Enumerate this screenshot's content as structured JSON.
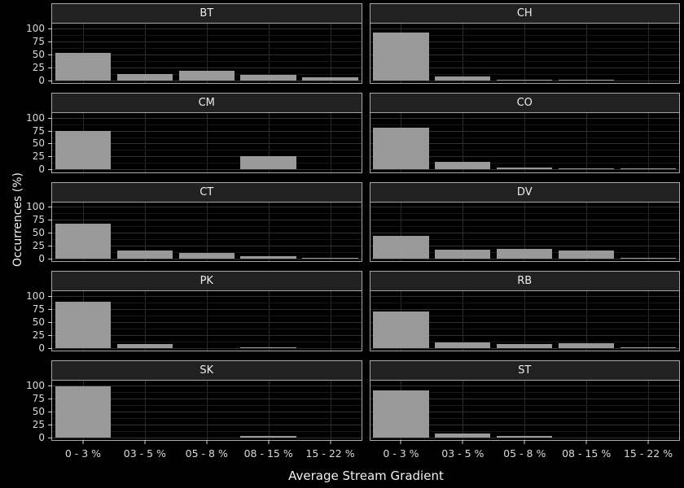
{
  "chart_data": {
    "type": "bar",
    "title": "",
    "xlabel": "Average Stream Gradient",
    "ylabel": "Occurrences (%)",
    "categories": [
      "0 - 3 %",
      "03 - 5 %",
      "05 - 8 %",
      "08 - 15 %",
      "15 - 22 %"
    ],
    "yticks": [
      100,
      75,
      50,
      25,
      0
    ],
    "ylim": [
      0,
      100
    ],
    "grid": "on",
    "legend": "none",
    "facet_layout": {
      "columns": 2,
      "rows": 5
    },
    "facets": [
      {
        "label": "BT",
        "values": [
          53,
          12,
          18,
          11,
          6
        ]
      },
      {
        "label": "CH",
        "values": [
          92,
          7,
          1.5,
          1.5,
          0
        ]
      },
      {
        "label": "CM",
        "values": [
          75,
          0,
          0,
          25,
          0
        ]
      },
      {
        "label": "CO",
        "values": [
          81,
          14,
          3,
          1.5,
          1.5
        ]
      },
      {
        "label": "CT",
        "values": [
          68,
          16,
          11,
          5,
          2
        ]
      },
      {
        "label": "DV",
        "values": [
          44,
          17,
          19,
          16,
          2
        ]
      },
      {
        "label": "PK",
        "values": [
          90,
          7,
          0,
          1.5,
          0
        ]
      },
      {
        "label": "RB",
        "values": [
          71,
          11,
          8,
          9,
          1.5
        ]
      },
      {
        "label": "SK",
        "values": [
          98,
          0,
          0,
          2,
          0
        ]
      },
      {
        "label": "ST",
        "values": [
          91,
          7,
          2,
          0,
          0
        ]
      }
    ],
    "colors": {
      "background": "#000000",
      "panel_background": "#000000",
      "bar_fill": "#999999",
      "strip_fill": "#212121",
      "panel_border": "#a8a8a8",
      "grid_major": "#2f2f2f",
      "grid_minor": "#181818",
      "tick_text": "#d9d9d9",
      "axis_title_text": "#f0f0f0",
      "strip_text": "#ececec"
    }
  }
}
